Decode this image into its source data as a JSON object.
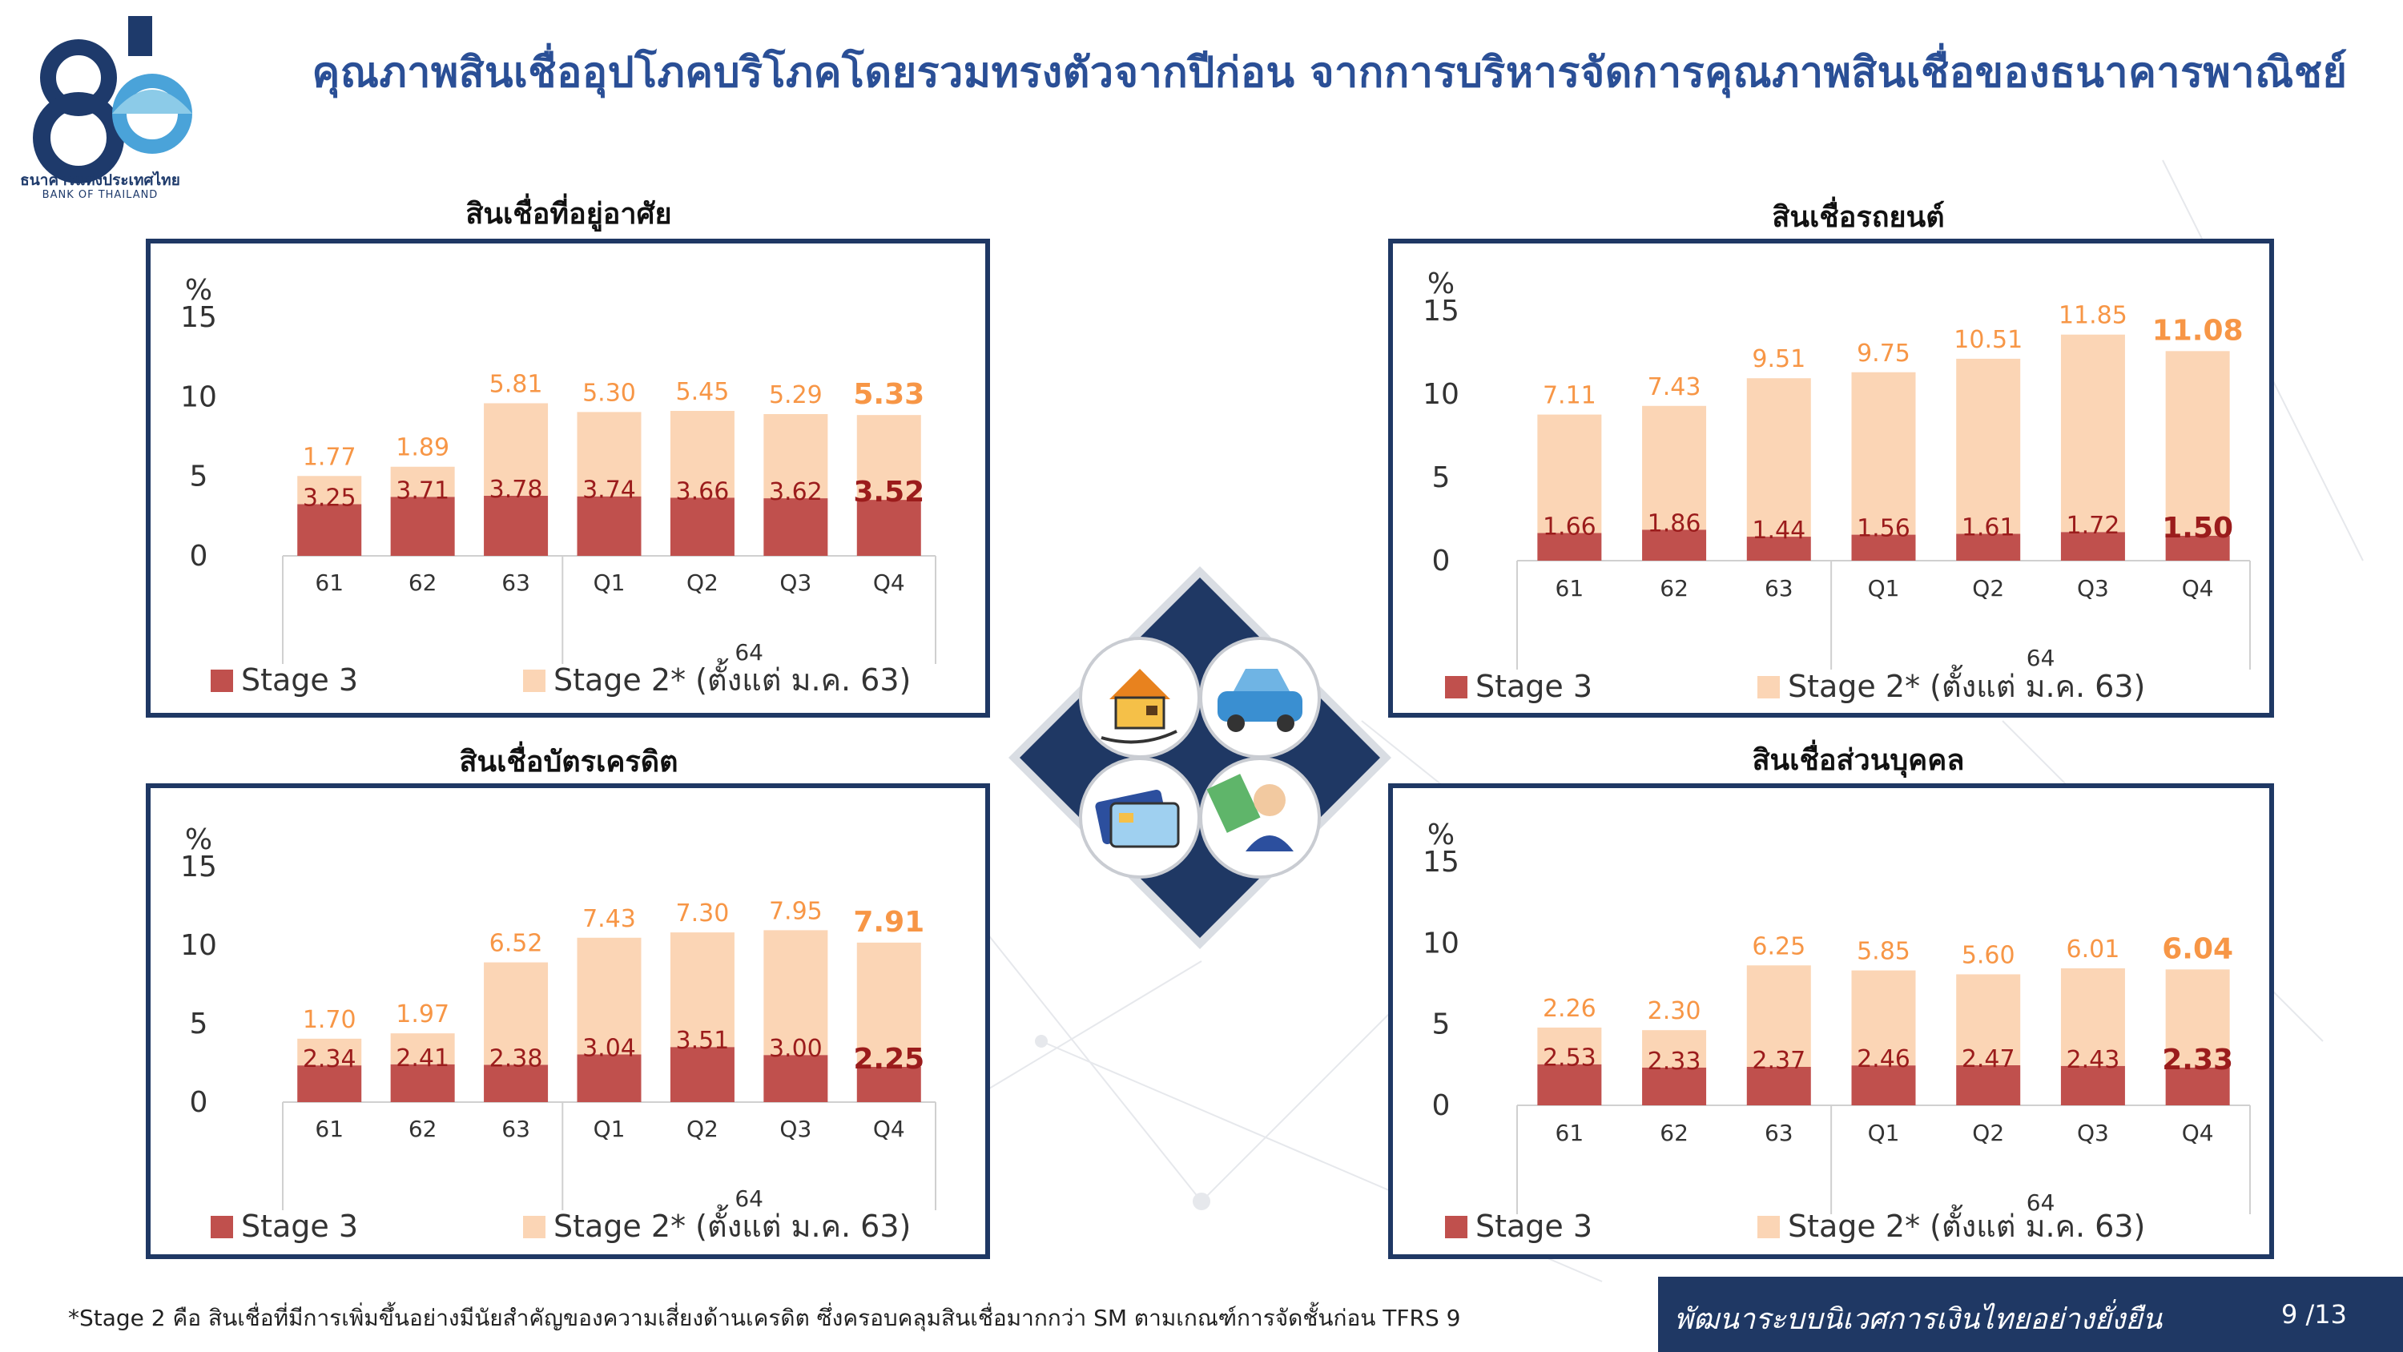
{
  "header": {
    "title": "คุณภาพสินเชื่ออุปโภคบริโภคโดยรวมทรงตัวจากปีก่อน จากการบริหารจัดการคุณภาพสินเชื่อของธนาคารพาณิชย์",
    "logo_th": "ธนาคารแห่งประเทศไทย",
    "logo_en": "BANK OF THAILAND",
    "logo_number": "80"
  },
  "colors": {
    "stage3": "#c0504d",
    "stage2": "#fbd5b5",
    "stage2_label": "#f79646",
    "stage3_label": "#9b1c1c",
    "frame": "#1f3864",
    "title": "#2a4f96"
  },
  "center_icons": [
    "house-hand-icon",
    "car-icon",
    "credit-card-icon",
    "person-money-icon"
  ],
  "footer": {
    "note": "*Stage 2 คือ สินเชื่อที่มีการเพิ่มขึ้นอย่างมีนัยสำคัญของความเสี่ยงด้านเครดิต ซึ่งครอบคลุมสินเชื่อมากกว่า SM ตามเกณฑ์การจัดชั้นก่อน TFRS 9",
    "slogan": "พัฒนาระบบนิเวศการเงินไทยอย่างยั่งยืน",
    "page": "9 /13"
  },
  "chart_data": [
    {
      "type": "bar",
      "stacked": true,
      "title": "สินเชื่อที่อยู่อาศัย",
      "ylabel": "%",
      "ylim": [
        0,
        15
      ],
      "yticks": [
        "0",
        "5",
        "10",
        "15"
      ],
      "categories": [
        "61",
        "62",
        "63",
        "Q1",
        "Q2",
        "Q3",
        "Q4"
      ],
      "group_label": "64",
      "series": [
        {
          "name": "Stage 3",
          "values": [
            3.25,
            3.71,
            3.78,
            3.74,
            3.66,
            3.62,
            3.52
          ]
        },
        {
          "name": "Stage 2* (ตั้งแต่ ม.ค. 63)",
          "values": [
            1.77,
            1.89,
            5.81,
            5.3,
            5.45,
            5.29,
            5.33
          ]
        }
      ],
      "stage3_labels": [
        "3.25",
        "3.71",
        "3.78",
        "3.74",
        "3.66",
        "3.62",
        "3.52"
      ],
      "stage2_labels": [
        "1.77",
        "1.89",
        "5.81",
        "5.30",
        "5.45",
        "5.29",
        "5.33"
      ],
      "legend": [
        "Stage 3",
        "Stage 2* (ตั้งแต่ ม.ค. 63)"
      ]
    },
    {
      "type": "bar",
      "stacked": true,
      "title": "สินเชื่อรถยนต์",
      "ylabel": "%",
      "ylim": [
        0,
        15
      ],
      "yticks": [
        "0",
        "5",
        "10",
        "15"
      ],
      "categories": [
        "61",
        "62",
        "63",
        "Q1",
        "Q2",
        "Q3",
        "Q4"
      ],
      "group_label": "64",
      "series": [
        {
          "name": "Stage 3",
          "values": [
            1.66,
            1.86,
            1.44,
            1.56,
            1.61,
            1.72,
            1.5
          ]
        },
        {
          "name": "Stage 2* (ตั้งแต่ ม.ค. 63)",
          "values": [
            7.11,
            7.43,
            9.51,
            9.75,
            10.51,
            11.85,
            11.08
          ]
        }
      ],
      "stage3_labels": [
        "1.66",
        "1.86",
        "1.44",
        "1.56",
        "1.61",
        "1.72",
        "1.50"
      ],
      "stage2_labels": [
        "7.11",
        "7.43",
        "9.51",
        "9.75",
        "10.51",
        "11.85",
        "11.08"
      ],
      "legend": [
        "Stage 3",
        "Stage 2* (ตั้งแต่ ม.ค. 63)"
      ]
    },
    {
      "type": "bar",
      "stacked": true,
      "title": "สินเชื่อบัตรเครดิต",
      "ylabel": "%",
      "ylim": [
        0,
        15
      ],
      "yticks": [
        "0",
        "5",
        "10",
        "15"
      ],
      "categories": [
        "61",
        "62",
        "63",
        "Q1",
        "Q2",
        "Q3",
        "Q4"
      ],
      "group_label": "64",
      "series": [
        {
          "name": "Stage 3",
          "values": [
            2.34,
            2.41,
            2.38,
            3.04,
            3.51,
            3.0,
            2.25
          ]
        },
        {
          "name": "Stage 2* (ตั้งแต่ ม.ค. 63)",
          "values": [
            1.7,
            1.97,
            6.52,
            7.43,
            7.3,
            7.95,
            7.91
          ]
        }
      ],
      "stage3_labels": [
        "2.34",
        "2.41",
        "2.38",
        "3.04",
        "3.51",
        "3.00",
        "2.25"
      ],
      "stage2_labels": [
        "1.70",
        "1.97",
        "6.52",
        "7.43",
        "7.30",
        "7.95",
        "7.91"
      ],
      "legend": [
        "Stage 3",
        "Stage 2* (ตั้งแต่ ม.ค. 63)"
      ]
    },
    {
      "type": "bar",
      "stacked": true,
      "title": "สินเชื่อส่วนบุคคล",
      "ylabel": "%",
      "ylim": [
        0,
        15
      ],
      "yticks": [
        "0",
        "5",
        "10",
        "15"
      ],
      "categories": [
        "61",
        "62",
        "63",
        "Q1",
        "Q2",
        "Q3",
        "Q4"
      ],
      "group_label": "64",
      "series": [
        {
          "name": "Stage 3",
          "values": [
            2.53,
            2.33,
            2.37,
            2.46,
            2.47,
            2.43,
            2.33
          ]
        },
        {
          "name": "Stage 2* (ตั้งแต่ ม.ค. 63)",
          "values": [
            2.26,
            2.3,
            6.25,
            5.85,
            5.6,
            6.01,
            6.04
          ]
        }
      ],
      "stage3_labels": [
        "2.53",
        "2.33",
        "2.37",
        "2.46",
        "2.47",
        "2.43",
        "2.33"
      ],
      "stage2_labels": [
        "2.26",
        "2.30",
        "6.25",
        "5.85",
        "5.60",
        "6.01",
        "6.04"
      ],
      "legend": [
        "Stage 3",
        "Stage 2* (ตั้งแต่ ม.ค. 63)"
      ]
    }
  ]
}
